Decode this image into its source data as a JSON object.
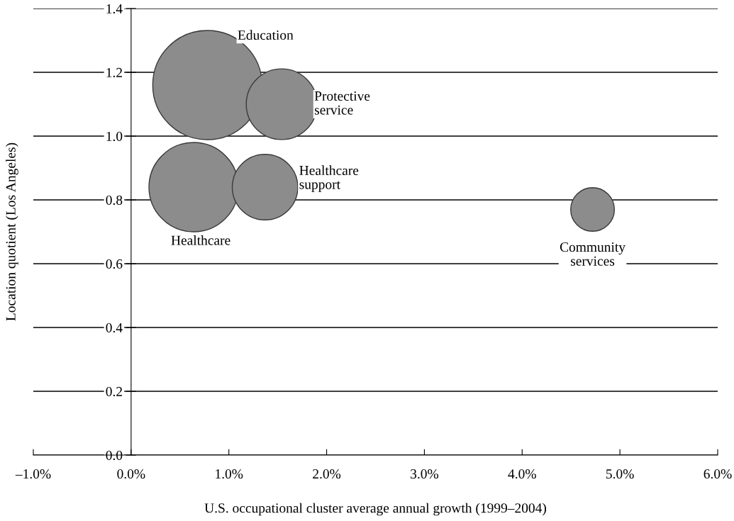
{
  "chart_data": {
    "type": "bubble",
    "xlabel": "U.S. occupational cluster average annual growth (1999–2004)",
    "ylabel": "Location quotient (Los Angeles)",
    "series": [
      {
        "name": "Education",
        "color": "#8c8c8c",
        "x": [
          0.78
        ],
        "values": [
          1.16
        ],
        "sizes": [
          1
        ]
      },
      {
        "name": "Protective\nservice",
        "color": "#8c8c8c",
        "x": [
          1.54
        ],
        "values": [
          1.1
        ],
        "sizes": [
          0.42
        ]
      },
      {
        "name": "Healthcare",
        "color": "#8c8c8c",
        "x": [
          0.64
        ],
        "values": [
          0.84
        ],
        "sizes": [
          0.67
        ]
      },
      {
        "name": "Healthcare\nsupport",
        "color": "#8c8c8c",
        "x": [
          1.37
        ],
        "values": [
          0.84
        ],
        "sizes": [
          0.36
        ]
      },
      {
        "name": "Community\nservices",
        "color": "#8c8c8c",
        "x": [
          4.72
        ],
        "values": [
          0.77
        ],
        "sizes": [
          0.16
        ]
      }
    ],
    "xlim": [
      -1,
      6
    ],
    "xticks": [
      {
        "value": -1,
        "label": "–1.0%"
      },
      {
        "value": 0,
        "label": "0.0%"
      },
      {
        "value": 1,
        "label": "1.0%"
      },
      {
        "value": 2,
        "label": "2.0%"
      },
      {
        "value": 3,
        "label": "3.0%"
      },
      {
        "value": 4,
        "label": "4.0%"
      },
      {
        "value": 5,
        "label": "5.0%"
      },
      {
        "value": 6,
        "label": "6.0%"
      }
    ],
    "ylim": [
      0,
      1.4
    ],
    "yticks": [
      {
        "value": 0,
        "label": "0.0"
      },
      {
        "value": 0.2,
        "label": "0.2"
      },
      {
        "value": 0.4,
        "label": "0.4"
      },
      {
        "value": 0.6,
        "label": "0.6"
      },
      {
        "value": 0.8,
        "label": "0.8"
      },
      {
        "value": 1.0,
        "label": "1.0"
      },
      {
        "value": 1.2,
        "label": "1.2"
      },
      {
        "value": 1.4,
        "label": "1.4"
      }
    ],
    "grid": "y",
    "legend": false
  }
}
